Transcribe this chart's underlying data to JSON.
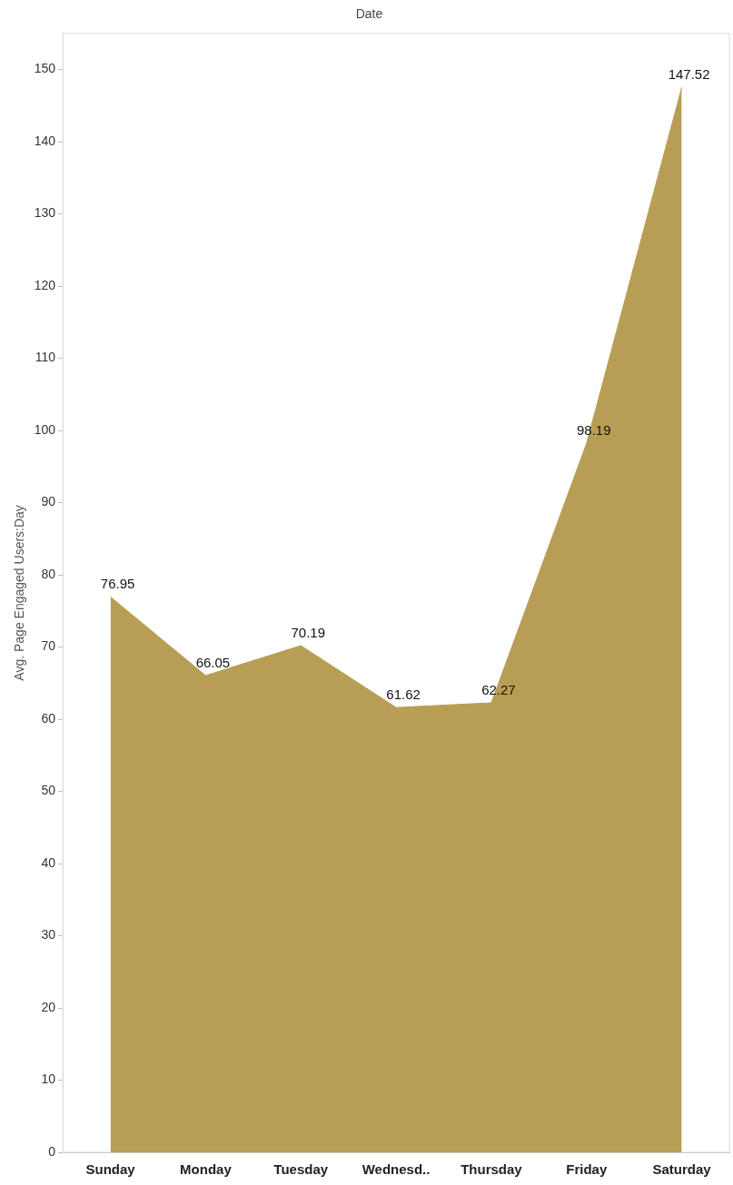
{
  "chart_data": {
    "type": "area",
    "xlabel": "Date",
    "ylabel": "Avg. Page Engaged Users:Day",
    "categories": [
      "Sunday",
      "Monday",
      "Tuesday",
      "Wednesd..",
      "Thursday",
      "Friday",
      "Saturday"
    ],
    "values": [
      76.95,
      66.05,
      70.19,
      61.62,
      62.27,
      98.19,
      147.52
    ],
    "color": "#b89e54",
    "ylim": [
      0,
      155
    ],
    "yticks": [
      0,
      10,
      20,
      30,
      40,
      50,
      60,
      70,
      80,
      90,
      100,
      110,
      120,
      130,
      140,
      150
    ],
    "grid": false,
    "legend": false,
    "data_labels": true
  }
}
